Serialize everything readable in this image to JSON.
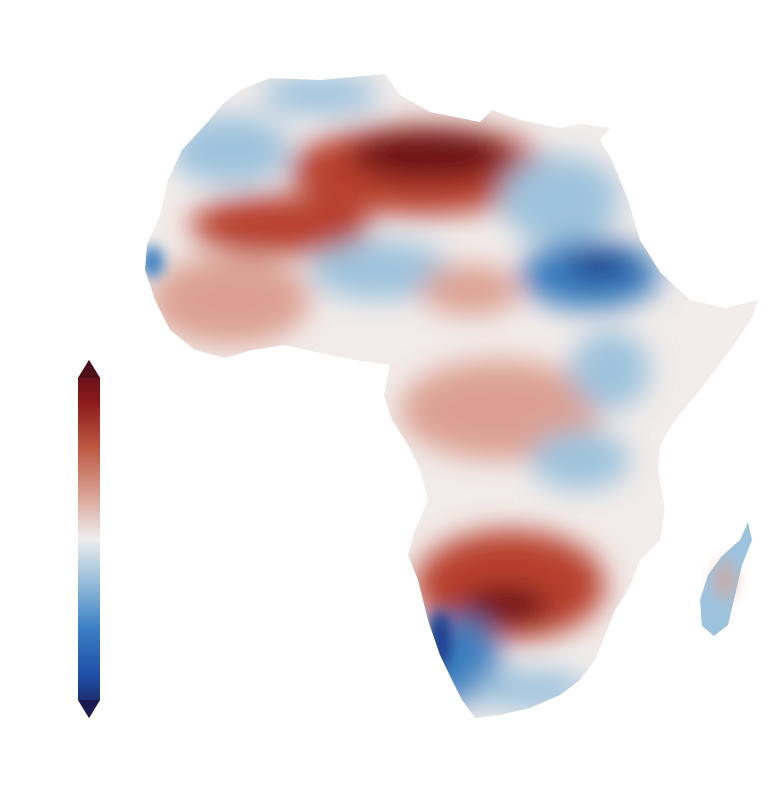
{
  "colors": {
    "background": "#ffffff",
    "colormap": [
      "#1b1a4e",
      "#1f4fa8",
      "#3b7fc4",
      "#8fb8d8",
      "#eeeeee",
      "#d9a396",
      "#bf5b45",
      "#8e1b1b",
      "#4e0d18"
    ],
    "dark_red": "#6b0f14",
    "red": "#b8402e",
    "light_red": "#dca092",
    "blank": "#f2ecea",
    "light_blue": "#9ec3dd",
    "blue": "#3d80c0",
    "dark_blue": "#1d3f8f"
  },
  "map": {
    "region": "Africa",
    "type": "diverging anomaly field",
    "colorbar": {
      "orientation": "vertical",
      "extend": "both",
      "labels": []
    }
  }
}
